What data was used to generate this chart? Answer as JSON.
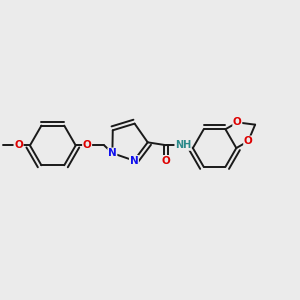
{
  "bg_color": "#ebebeb",
  "bond_color": "#1a1a1a",
  "bond_width": 1.4,
  "dbo": 0.055,
  "atom_colors": {
    "O": "#dd0000",
    "N": "#1010ee",
    "NH": "#2a8a8a",
    "C": "#1a1a1a"
  },
  "xlim": [
    -2.6,
    2.6
  ],
  "ylim": [
    -1.5,
    1.5
  ]
}
